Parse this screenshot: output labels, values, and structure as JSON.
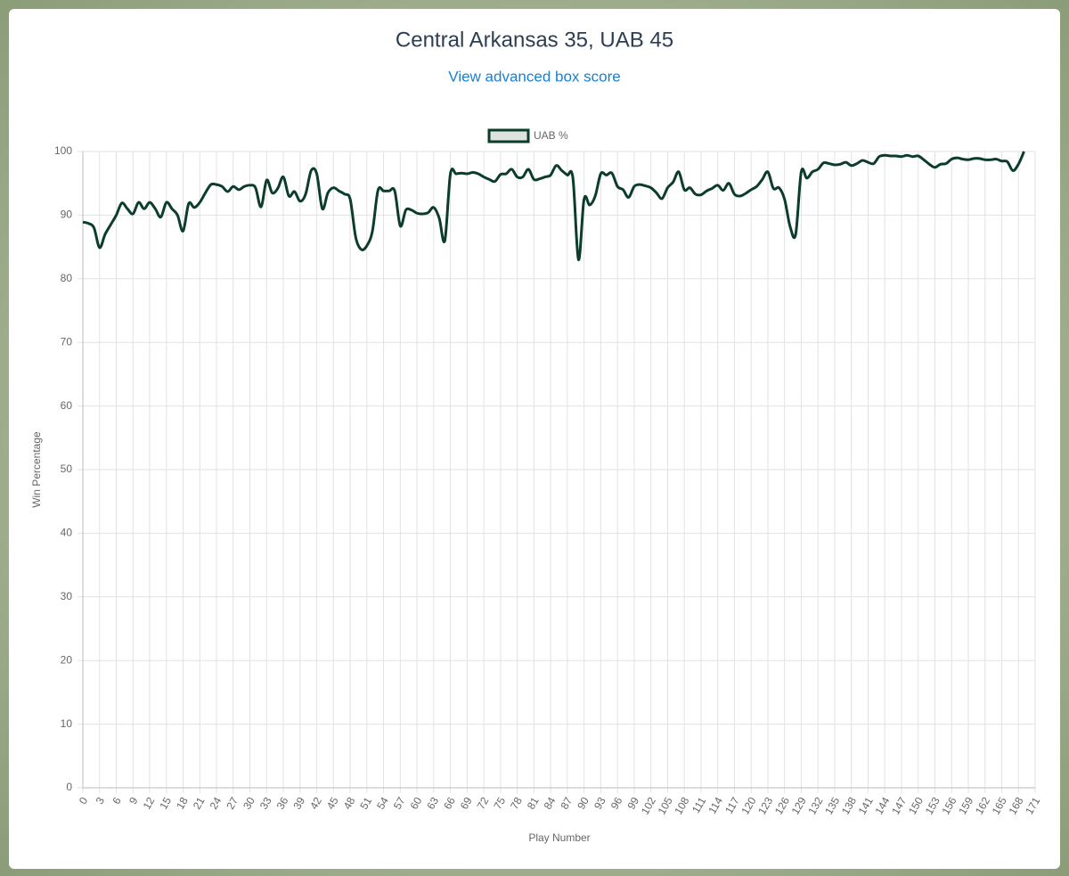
{
  "chart_data": {
    "type": "line",
    "title": "Central Arkansas 35, UAB 45",
    "subtitle": "View advanced box score",
    "x_label": "Play Number",
    "y_label": "Win Percentage",
    "series": [
      {
        "name": "UAB %",
        "color": "#0b3d2a",
        "x": [
          0,
          1,
          2,
          3,
          4,
          5,
          6,
          7,
          8,
          9,
          10,
          11,
          12,
          13,
          14,
          15,
          16,
          17,
          18,
          19,
          20,
          21,
          22,
          23,
          24,
          25,
          26,
          27,
          28,
          29,
          30,
          31,
          32,
          33,
          34,
          35,
          36,
          37,
          38,
          39,
          40,
          41,
          42,
          43,
          44,
          45,
          46,
          47,
          48,
          49,
          50,
          51,
          52,
          53,
          54,
          55,
          56,
          57,
          58,
          59,
          60,
          61,
          62,
          63,
          64,
          65,
          66,
          67,
          68,
          69,
          70,
          71,
          72,
          73,
          74,
          75,
          76,
          77,
          78,
          79,
          80,
          81,
          82,
          83,
          84,
          85,
          86,
          87,
          88,
          89,
          90,
          91,
          92,
          93,
          94,
          95,
          96,
          97,
          98,
          99,
          100,
          101,
          102,
          103,
          104,
          105,
          106,
          107,
          108,
          109,
          110,
          111,
          112,
          113,
          114,
          115,
          116,
          117,
          118,
          119,
          120,
          121,
          122,
          123,
          124,
          125,
          126,
          127,
          128,
          129,
          130,
          131,
          132,
          133,
          134,
          135,
          136,
          137,
          138,
          139,
          140,
          141,
          142,
          143,
          144,
          145,
          146,
          147,
          148,
          149,
          150,
          151,
          152,
          153,
          154,
          155,
          156,
          157,
          158,
          159,
          160,
          161,
          162,
          163,
          164,
          165,
          166,
          167,
          168,
          169
        ],
        "values": [
          88.9,
          88.7,
          88,
          84.9,
          87,
          88.5,
          90,
          91.9,
          91,
          90.2,
          92,
          91,
          92,
          91,
          89.7,
          92,
          91,
          90,
          87.5,
          91.8,
          91.2,
          92,
          93.5,
          94.8,
          94.8,
          94.5,
          93.7,
          94.5,
          94,
          94.5,
          94.7,
          94.3,
          91.3,
          95.5,
          93.5,
          94.2,
          96,
          93,
          93.7,
          92.2,
          93.3,
          97,
          96.5,
          91,
          93.5,
          94.3,
          93.8,
          93.3,
          92.5,
          86.5,
          84.6,
          85.2,
          87.5,
          93.9,
          93.8,
          93.8,
          93.8,
          88.3,
          90.8,
          90.8,
          90.3,
          90.2,
          90.4,
          91.2,
          89.5,
          86,
          96.5,
          96.5,
          96.6,
          96.5,
          96.7,
          96.5,
          96,
          95.6,
          95.3,
          96.4,
          96.5,
          97.2,
          96,
          96,
          97.2,
          95.6,
          95.7,
          96,
          96.3,
          97.8,
          97,
          96.3,
          95.8,
          83,
          92.5,
          91.6,
          93,
          96.5,
          96.3,
          96.6,
          94.5,
          94,
          92.8,
          94.5,
          94.8,
          94.6,
          94.3,
          93.5,
          92.6,
          94.3,
          95.2,
          96.8,
          94,
          94.3,
          93.3,
          93.2,
          93.8,
          94.2,
          94.7,
          93.9,
          95,
          93.3,
          93,
          93.4,
          94,
          94.5,
          95.6,
          96.8,
          94.2,
          94.3,
          92.5,
          88.2,
          87,
          96.8,
          95.8,
          96.8,
          97.2,
          98.2,
          98.1,
          97.9,
          98,
          98.3,
          97.8,
          98.1,
          98.6,
          98.3,
          98.1,
          99.2,
          99.4,
          99.3,
          99.3,
          99.2,
          99.4,
          99.2,
          99.3,
          98.7,
          98,
          97.5,
          98,
          98.1,
          98.8,
          99,
          98.8,
          98.7,
          98.9,
          98.9,
          98.7,
          98.7,
          98.8,
          98.5,
          98.4,
          97,
          98,
          100
        ]
      }
    ],
    "xlim": [
      0,
      171
    ],
    "xticks": [
      0,
      3,
      6,
      9,
      12,
      15,
      18,
      21,
      24,
      27,
      30,
      33,
      36,
      39,
      42,
      45,
      48,
      51,
      54,
      57,
      60,
      63,
      66,
      69,
      72,
      75,
      78,
      81,
      84,
      87,
      90,
      93,
      96,
      99,
      102,
      105,
      108,
      111,
      114,
      117,
      120,
      123,
      126,
      129,
      132,
      135,
      138,
      141,
      144,
      147,
      150,
      153,
      156,
      159,
      162,
      165,
      168,
      171
    ],
    "ylim": [
      0,
      100
    ],
    "yticks": [
      0,
      10,
      20,
      30,
      40,
      50,
      60,
      70,
      80,
      90,
      100
    ],
    "grid": true,
    "legend": "top"
  }
}
